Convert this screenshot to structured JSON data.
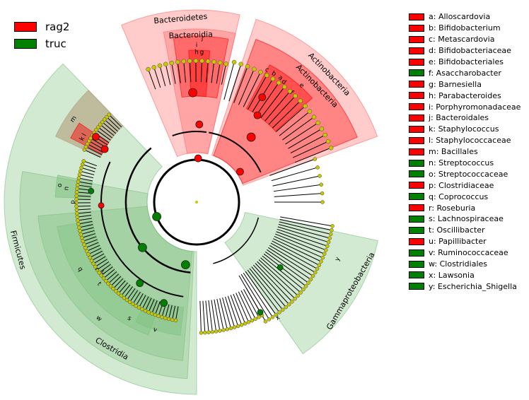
{
  "colors": {
    "rag2": "#ff0000",
    "truc": "#008000",
    "node_default": "#c8c800",
    "clade_red": "#ff6b6b",
    "clade_green": "#7fc07f",
    "clade_m": "#b39c7a"
  },
  "groups": [
    {
      "label": "rag2",
      "color": "#ff0000"
    },
    {
      "label": "truc",
      "color": "#008000"
    }
  ],
  "biomarkers": [
    {
      "label": "a: Alloscardovia",
      "group": "rag2"
    },
    {
      "label": "b: Bifidobacterium",
      "group": "rag2"
    },
    {
      "label": "c: Metascardovia",
      "group": "rag2"
    },
    {
      "label": "d: Bifidobacteriaceae",
      "group": "rag2"
    },
    {
      "label": "e: Bifidobacteriales",
      "group": "rag2"
    },
    {
      "label": "f: Asaccharobacter",
      "group": "truc"
    },
    {
      "label": "g: Barnesiella",
      "group": "rag2"
    },
    {
      "label": "h: Parabacteroides",
      "group": "rag2"
    },
    {
      "label": "i: Porphyromonadaceae",
      "group": "rag2"
    },
    {
      "label": "j: Bacteroidales",
      "group": "rag2"
    },
    {
      "label": "k: Staphylococcus",
      "group": "rag2"
    },
    {
      "label": "l: Staphylococcaceae",
      "group": "rag2"
    },
    {
      "label": "m: Bacillales",
      "group": "rag2"
    },
    {
      "label": "n: Streptococcus",
      "group": "truc"
    },
    {
      "label": "o: Streptococcaceae",
      "group": "truc"
    },
    {
      "label": "p: Clostridiaceae",
      "group": "rag2"
    },
    {
      "label": "q: Coprococcus",
      "group": "truc"
    },
    {
      "label": "r: Roseburia",
      "group": "rag2"
    },
    {
      "label": "s: Lachnospiraceae",
      "group": "truc"
    },
    {
      "label": "t: Oscillibacter",
      "group": "truc"
    },
    {
      "label": "u: Papillibacter",
      "group": "rag2"
    },
    {
      "label": "v: Ruminococcaceae",
      "group": "truc"
    },
    {
      "label": "w: Clostridiales",
      "group": "truc"
    },
    {
      "label": "x: Lawsonia",
      "group": "truc"
    },
    {
      "label": "y: Escherichia_Shigella",
      "group": "truc"
    }
  ],
  "clades": [
    {
      "label": "Bacteroidetes",
      "group": "rag2",
      "level": 1
    },
    {
      "label": "Bacteroidia",
      "group": "rag2",
      "level": 2
    },
    {
      "label": "Actinobacteria",
      "group": "rag2",
      "level": 1
    },
    {
      "label": "Actinobacteria",
      "group": "rag2",
      "level": 2
    },
    {
      "label": "Firmicutes",
      "group": "truc",
      "level": 1
    },
    {
      "label": "Clostridia",
      "group": "truc",
      "level": 2
    },
    {
      "label": "Gammaproteobacteria",
      "group": "truc",
      "level": 2
    }
  ],
  "letter_marks": [
    "a",
    "b",
    "c",
    "d",
    "e",
    "f",
    "g",
    "h",
    "i",
    "j",
    "k",
    "l",
    "m",
    "n",
    "o",
    "p",
    "q",
    "r",
    "s",
    "t",
    "u",
    "v",
    "w",
    "x",
    "y"
  ]
}
